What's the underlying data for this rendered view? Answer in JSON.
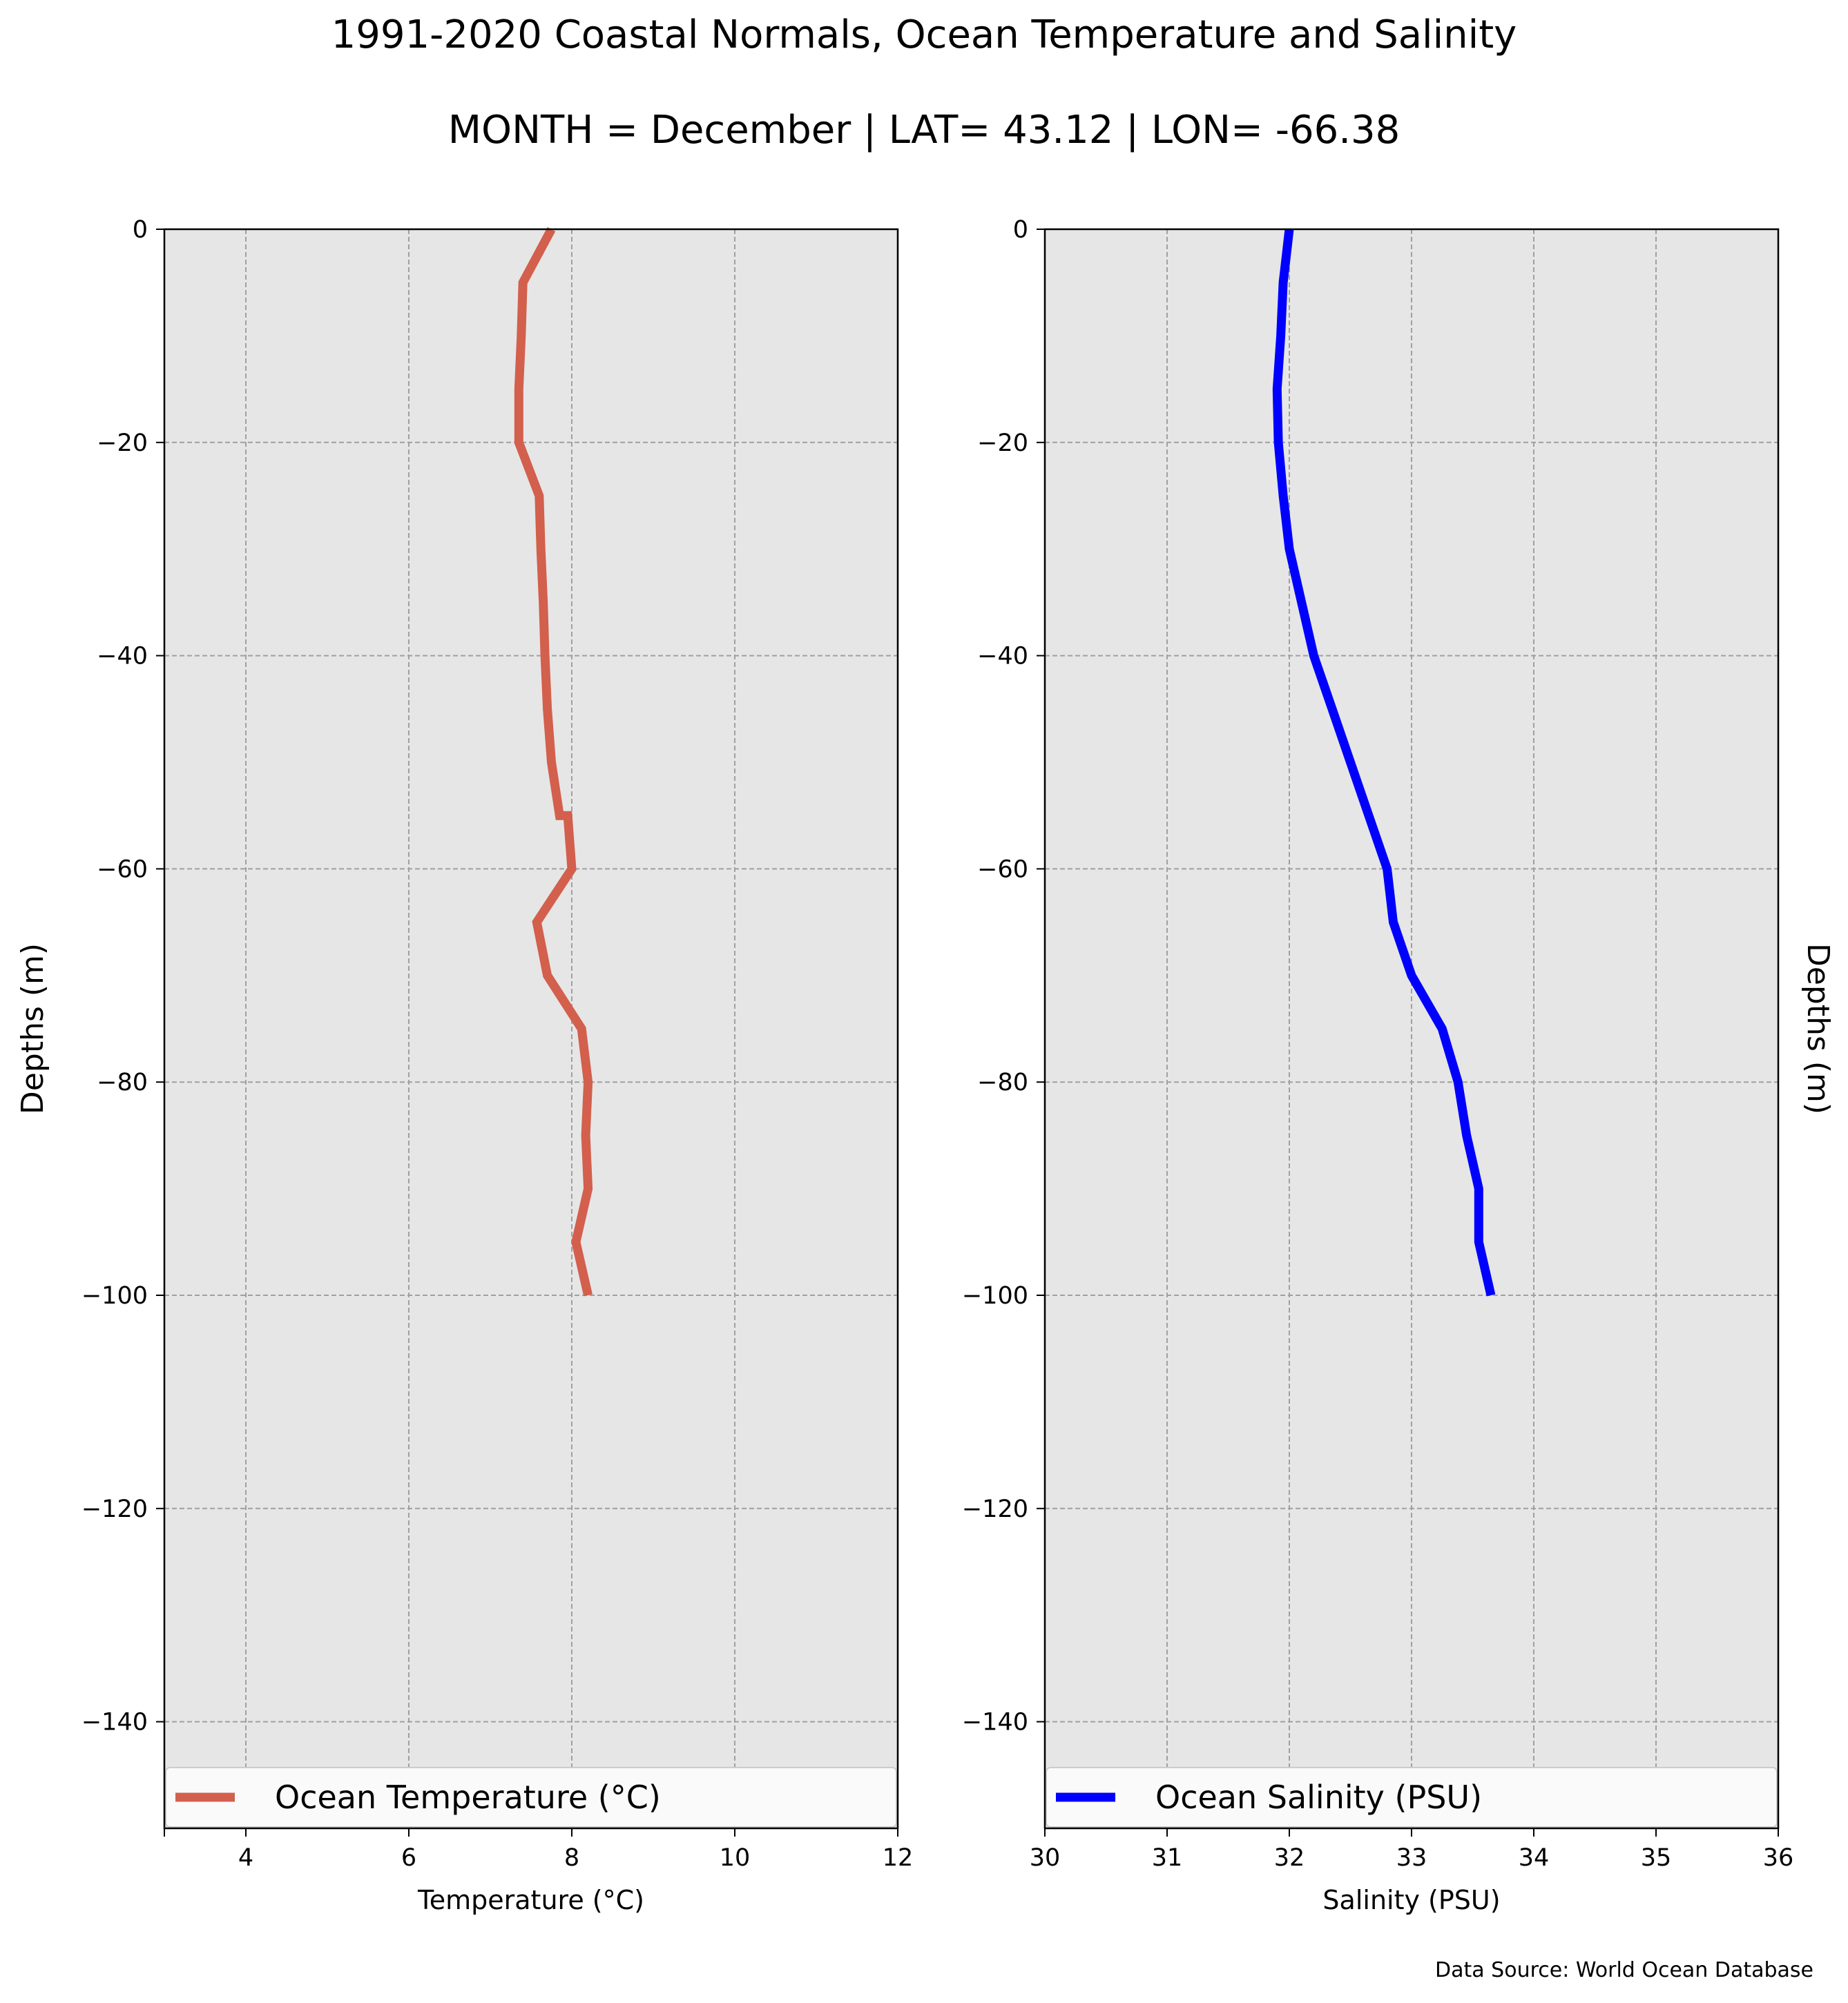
{
  "title": "1991-2020 Coastal Normals, Ocean Temperature and Salinity",
  "subtitle": "MONTH = December | LAT= 43.12 | LON= -66.38",
  "source_note": "Data Source: World Ocean Database",
  "chart_data": [
    {
      "type": "line",
      "xlabel": "Temperature ($^\\circ$C)",
      "xlabel_display": "Temperature (°C)",
      "ylabel": "Depths (m)",
      "xlim": [
        3,
        12
      ],
      "ylim": [
        -150,
        0
      ],
      "xticks": [
        4,
        6,
        8,
        10,
        12
      ],
      "yticks": [
        0,
        -20,
        -40,
        -60,
        -80,
        -100,
        -120,
        -140
      ],
      "grid": true,
      "legend_position": "bottom",
      "series": [
        {
          "name": "Ocean Temperature (°C)",
          "color": "#d35f4d",
          "x": [
            7.75,
            7.4,
            7.38,
            7.35,
            7.35,
            7.35,
            7.6,
            7.62,
            7.65,
            7.67,
            7.7,
            7.75,
            7.85,
            7.95,
            8.0,
            7.57,
            7.7,
            8.12,
            8.2,
            8.17,
            8.2,
            8.05,
            8.2
          ],
          "y": [
            0,
            -5,
            -10,
            -15,
            -20,
            -20,
            -25,
            -30,
            -35,
            -40,
            -45,
            -50,
            -55,
            -55,
            -60,
            -65,
            -70,
            -75,
            -80,
            -85,
            -90,
            -95,
            -100
          ]
        }
      ]
    },
    {
      "type": "line",
      "xlabel": "Salinity (PSU)",
      "ylabel": "Depths (m)",
      "xlim": [
        30,
        36
      ],
      "ylim": [
        -150,
        0
      ],
      "xticks": [
        30,
        31,
        32,
        33,
        34,
        35,
        36
      ],
      "yticks": [
        0,
        -20,
        -40,
        -60,
        -80,
        -100,
        -120,
        -140
      ],
      "grid": true,
      "legend_position": "bottom",
      "series": [
        {
          "name": "Ocean Salinity (PSU)",
          "color": "#0000ff",
          "x": [
            32.0,
            31.95,
            31.93,
            31.9,
            31.91,
            31.95,
            32.0,
            32.1,
            32.2,
            32.35,
            32.5,
            32.65,
            32.8,
            32.85,
            33.0,
            33.25,
            33.38,
            33.45,
            33.55,
            33.55,
            33.65
          ],
          "y": [
            0,
            -5,
            -10,
            -15,
            -20,
            -25,
            -30,
            -35,
            -40,
            -45,
            -50,
            -55,
            -60,
            -65,
            -70,
            -75,
            -80,
            -85,
            -90,
            -95,
            -100
          ]
        }
      ]
    }
  ]
}
